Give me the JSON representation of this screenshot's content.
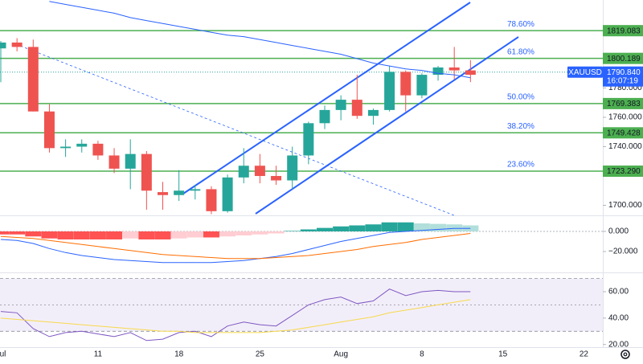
{
  "chart_data": [
    {
      "type": "candlestick",
      "symbol": "XAUUSD",
      "last_price": {
        "value": 1790.84,
        "label": "1790.840"
      },
      "countdown": "16:07:19",
      "up_color": "#26a69a",
      "down_color": "#ef5350",
      "ylim": [
        1693,
        1840
      ],
      "yticks": [
        {
          "value": 1780,
          "label": "1780.000"
        },
        {
          "value": 1760,
          "label": "1760.000"
        },
        {
          "value": 1740,
          "label": "1740.000"
        },
        {
          "value": 1700,
          "label": "1700.000"
        }
      ],
      "xticks": [
        {
          "value": 0,
          "label": "Jul"
        },
        {
          "value": 6,
          "label": "11"
        },
        {
          "value": 11,
          "label": "18"
        },
        {
          "value": 16,
          "label": "25"
        },
        {
          "value": 21,
          "label": "Aug"
        },
        {
          "value": 26,
          "label": "8"
        },
        {
          "value": 31,
          "label": "15"
        },
        {
          "value": 36,
          "label": "22"
        }
      ],
      "open": [
        1807,
        1811,
        1808,
        1764,
        1739,
        1740,
        1742,
        1734,
        1725,
        1735,
        1709,
        1707,
        1710,
        1711,
        1696,
        1719,
        1727,
        1720,
        1717,
        1734,
        1756,
        1765,
        1772,
        1761,
        1765,
        1791,
        1775,
        1789,
        1794,
        1792
      ],
      "high": [
        1812,
        1814,
        1813,
        1769,
        1745,
        1745,
        1744,
        1739,
        1745,
        1737,
        1716,
        1724,
        1714,
        1713,
        1721,
        1739,
        1735,
        1727,
        1740,
        1757,
        1768,
        1775,
        1789,
        1766,
        1795,
        1792,
        1790,
        1795,
        1808,
        1799
      ],
      "low": [
        1784,
        1805,
        1764,
        1736,
        1733,
        1736,
        1731,
        1722,
        1711,
        1697,
        1697,
        1703,
        1704,
        1694,
        1695,
        1715,
        1715,
        1714,
        1711,
        1728,
        1752,
        1758,
        1759,
        1755,
        1764,
        1764,
        1773,
        1785,
        1786,
        1784
      ],
      "close": [
        1811,
        1808,
        1764,
        1739,
        1740,
        1742,
        1734,
        1725,
        1735,
        1710,
        1707,
        1710,
        1711,
        1696,
        1719,
        1727,
        1720,
        1717,
        1734,
        1756,
        1765,
        1772,
        1761,
        1765,
        1791,
        1775,
        1789,
        1794,
        1792,
        1789
      ],
      "ma": {
        "color": "#2962ff",
        "values": [
          null,
          null,
          null,
          1839,
          1837,
          1835,
          1833,
          1831,
          1828,
          1826,
          1824,
          1822,
          1820,
          1818,
          1816,
          1815,
          1813,
          1811,
          1809,
          1807,
          1805,
          1803,
          1800,
          1797,
          1795,
          1793,
          1792,
          1790,
          1789,
          1787
        ]
      },
      "level_color": "#4caf50",
      "fib_color": "#2962ff",
      "levels": [
        {
          "value": 1819.083,
          "label": "1819.083",
          "fib": "78.60%"
        },
        {
          "value": 1800.189,
          "label": "1800.189",
          "fib": "61.80%"
        },
        {
          "value": 1769.383,
          "label": "1769.383",
          "fib": "50.00%"
        },
        {
          "value": 1749.428,
          "label": "1749.428",
          "fib": "38.20%"
        },
        {
          "value": 1723.29,
          "label": "1723.290",
          "fib": "23.60%"
        }
      ]
    },
    {
      "type": "macd",
      "ylim": [
        -40,
        16
      ],
      "yticks": [
        {
          "value": 0,
          "label": "0.000"
        },
        {
          "value": -20,
          "label": "−20.000"
        }
      ],
      "histogram": [
        -3,
        -3,
        -5,
        -7,
        -8,
        -8,
        -8,
        -8,
        -7,
        -8,
        -8,
        -7,
        -6,
        -6,
        -5,
        -4,
        -3,
        -2,
        0.5,
        2,
        3.5,
        5,
        6,
        7,
        9,
        9,
        8,
        7.5,
        7,
        6
      ],
      "hist_colors": {
        "up_rising": "#26a69a",
        "up_falling": "#b2dfdb",
        "down_falling": "#ff5252",
        "down_rising": "#ffcdd2"
      },
      "series": [
        {
          "color": "#2962ff",
          "values": [
            -8,
            -9,
            -12,
            -17,
            -21,
            -24,
            -26,
            -28,
            -29,
            -30,
            -31,
            -31,
            -31,
            -31,
            -30,
            -29,
            -27,
            -25,
            -22,
            -18,
            -14,
            -10,
            -7,
            -4,
            -1,
            0,
            1,
            2,
            3,
            3
          ]
        },
        {
          "color": "#ff6d00",
          "values": [
            -5,
            -6,
            -7,
            -9,
            -11,
            -13,
            -15,
            -17,
            -19,
            -21,
            -23,
            -24,
            -25,
            -26,
            -27,
            -27,
            -27,
            -26,
            -25,
            -24,
            -22,
            -20,
            -18,
            -15,
            -13,
            -11,
            -8,
            -6,
            -4,
            -2
          ]
        }
      ]
    },
    {
      "type": "rsi",
      "ylim": [
        18,
        74
      ],
      "yticks": [
        {
          "value": 60,
          "label": "60.00"
        },
        {
          "value": 40,
          "label": "40.00"
        },
        {
          "value": 20,
          "label": "20.00"
        }
      ],
      "band": [
        30,
        70
      ],
      "midline": 50,
      "band_color": "#7e57c2",
      "series": [
        {
          "color": "#7e57c2",
          "values": [
            45,
            44,
            32,
            26,
            29,
            30,
            28,
            26,
            29,
            23,
            24,
            29,
            30,
            26,
            34,
            37,
            35,
            34,
            42,
            50,
            54,
            56,
            51,
            53,
            62,
            57,
            60,
            61,
            60,
            60
          ]
        },
        {
          "color": "#f7d94c",
          "values": [
            40,
            39,
            38,
            37,
            36,
            35,
            34,
            33,
            32,
            31,
            30,
            30,
            29,
            29,
            29,
            29,
            29,
            30,
            31,
            33,
            35,
            37,
            39,
            41,
            44,
            46,
            48,
            50,
            52,
            54
          ]
        }
      ]
    }
  ]
}
